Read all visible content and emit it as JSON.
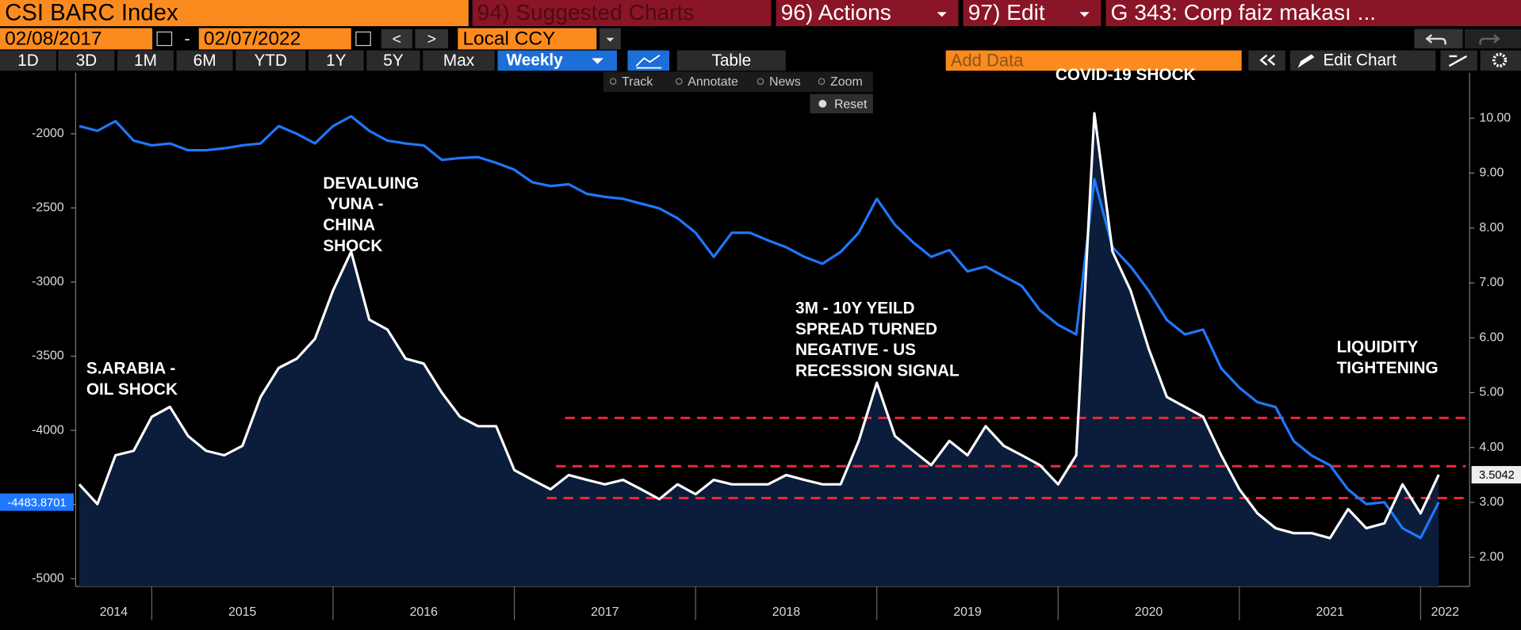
{
  "header": {
    "title": "CSI BARC Index",
    "suggested": "94) Suggested Charts",
    "actions": "96) Actions",
    "edit": "97) Edit",
    "chart_name": "G 343: Corp faiz makası ..."
  },
  "controls": {
    "start_date": "02/08/2017",
    "separator": "-",
    "end_date": "02/07/2022",
    "prev": "<",
    "next": ">",
    "currency": "Local CCY",
    "periods": [
      "1D",
      "3D",
      "1M",
      "6M",
      "YTD",
      "1Y",
      "5Y",
      "Max"
    ],
    "frequency": "Weekly",
    "table": "Table",
    "add_data": "Add Data",
    "edit_chart": "Edit Chart"
  },
  "tools": [
    "Track",
    "Annotate",
    "News",
    "Zoom"
  ],
  "reset": "Reset",
  "chart_data": {
    "type": "line",
    "x": [
      2014.6,
      2014.7,
      2014.8,
      2014.9,
      2015.0,
      2015.1,
      2015.2,
      2015.3,
      2015.4,
      2015.5,
      2015.6,
      2015.7,
      2015.8,
      2015.9,
      2016.0,
      2016.1,
      2016.2,
      2016.3,
      2016.4,
      2016.5,
      2016.6,
      2016.7,
      2016.8,
      2016.9,
      2017.0,
      2017.1,
      2017.2,
      2017.3,
      2017.4,
      2017.5,
      2017.6,
      2017.7,
      2017.8,
      2017.9,
      2018.0,
      2018.1,
      2018.2,
      2018.3,
      2018.4,
      2018.5,
      2018.6,
      2018.7,
      2018.8,
      2018.9,
      2019.0,
      2019.1,
      2019.2,
      2019.3,
      2019.4,
      2019.5,
      2019.6,
      2019.7,
      2019.8,
      2019.9,
      2020.0,
      2020.1,
      2020.2,
      2020.3,
      2020.4,
      2020.5,
      2020.6,
      2020.7,
      2020.8,
      2020.9,
      2021.0,
      2021.1,
      2021.2,
      2021.3,
      2021.4,
      2021.5,
      2021.6,
      2021.7,
      2021.8,
      2021.9,
      2022.0,
      2022.1
    ],
    "xlim": [
      2014.58,
      2022.27
    ],
    "xticks": [
      2015,
      2016,
      2017,
      2018,
      2019,
      2020,
      2021,
      2022
    ],
    "year_labels": [
      2014,
      2015,
      2016,
      2017,
      2018,
      2019,
      2020,
      2021,
      2022
    ],
    "ylim": [
      -5052,
      -1588
    ],
    "yticks": [
      -2000,
      -2500,
      -3000,
      -3500,
      -4000,
      -4500,
      -5000
    ],
    "y2lim": [
      1.47,
      10.83
    ],
    "y2ticks": [
      {
        "value": 2,
        "label": "2.00"
      },
      {
        "value": 3,
        "label": "3.00"
      },
      {
        "value": 4,
        "label": "4.00"
      },
      {
        "value": 5,
        "label": "5.00"
      },
      {
        "value": 6,
        "label": "6.00"
      },
      {
        "value": 7,
        "label": "7.00"
      },
      {
        "value": 8,
        "label": "8.00"
      },
      {
        "value": 9,
        "label": "9.00"
      },
      {
        "value": 10,
        "label": "10.00"
      }
    ],
    "series": [
      {
        "color": "#1f78ff",
        "values": [
          -1948,
          -1980,
          -1915,
          -2046,
          -2078,
          -2065,
          -2111,
          -2111,
          -2098,
          -2078,
          -2065,
          -1948,
          -2000,
          -2065,
          -1948,
          -1882,
          -1980,
          -2046,
          -2065,
          -2078,
          -2176,
          -2163,
          -2157,
          -2196,
          -2242,
          -2327,
          -2353,
          -2340,
          -2405,
          -2425,
          -2438,
          -2471,
          -2503,
          -2569,
          -2667,
          -2830,
          -2667,
          -2667,
          -2719,
          -2765,
          -2830,
          -2876,
          -2797,
          -2667,
          -2438,
          -2614,
          -2732,
          -2830,
          -2784,
          -2928,
          -2895,
          -2961,
          -3026,
          -3190,
          -3288,
          -3353,
          -2307,
          -2765,
          -2895,
          -3059,
          -3255,
          -3353,
          -3320,
          -3582,
          -3712,
          -3810,
          -3843,
          -4072,
          -4170,
          -4235,
          -4399,
          -4497,
          -4484,
          -4660,
          -4725,
          -4483.8701
        ]
      },
      {
        "color": "#ffffff",
        "axis": "y2",
        "fill": "#0b1d3a",
        "values": [
          3.33,
          2.97,
          3.86,
          3.94,
          4.56,
          4.74,
          4.21,
          3.94,
          3.86,
          4.03,
          4.92,
          5.45,
          5.62,
          5.98,
          6.86,
          7.57,
          6.33,
          6.15,
          5.62,
          5.53,
          5.0,
          4.56,
          4.39,
          4.39,
          3.59,
          3.41,
          3.24,
          3.5,
          3.41,
          3.33,
          3.41,
          3.24,
          3.06,
          3.33,
          3.15,
          3.41,
          3.33,
          3.33,
          3.33,
          3.5,
          3.41,
          3.33,
          3.33,
          4.12,
          5.18,
          4.21,
          3.94,
          3.68,
          4.12,
          3.86,
          4.39,
          4.03,
          3.86,
          3.68,
          3.33,
          3.86,
          10.09,
          7.57,
          6.86,
          5.8,
          4.92,
          4.74,
          4.56,
          3.86,
          3.24,
          2.8,
          2.53,
          2.44,
          2.44,
          2.35,
          2.88,
          2.53,
          2.62,
          3.33,
          2.8,
          3.5042
        ]
      }
    ],
    "reference_lines": [
      {
        "value": 4.54,
        "axis": "y2",
        "x_start": 2017.28,
        "color": "#e8283c"
      },
      {
        "value": 3.66,
        "axis": "y2",
        "x_start": 2017.23,
        "color": "#e8283c"
      },
      {
        "value": 3.08,
        "axis": "y2",
        "x_start": 2017.18,
        "color": "#e8283c"
      }
    ],
    "annotations": [
      [
        "COVID-19 SHOCK"
      ],
      [
        "DEVALUING",
        " YUNA -",
        "CHINA",
        "SHOCK"
      ],
      [
        "S.ARABIA -",
        "OIL SHOCK"
      ],
      [
        "3M - 10Y YEILD",
        "SPREAD TURNED",
        "NEGATIVE - US",
        "RECESSION SIGNAL"
      ],
      [
        "LIQUIDITY",
        "TIGHTENING"
      ]
    ]
  }
}
